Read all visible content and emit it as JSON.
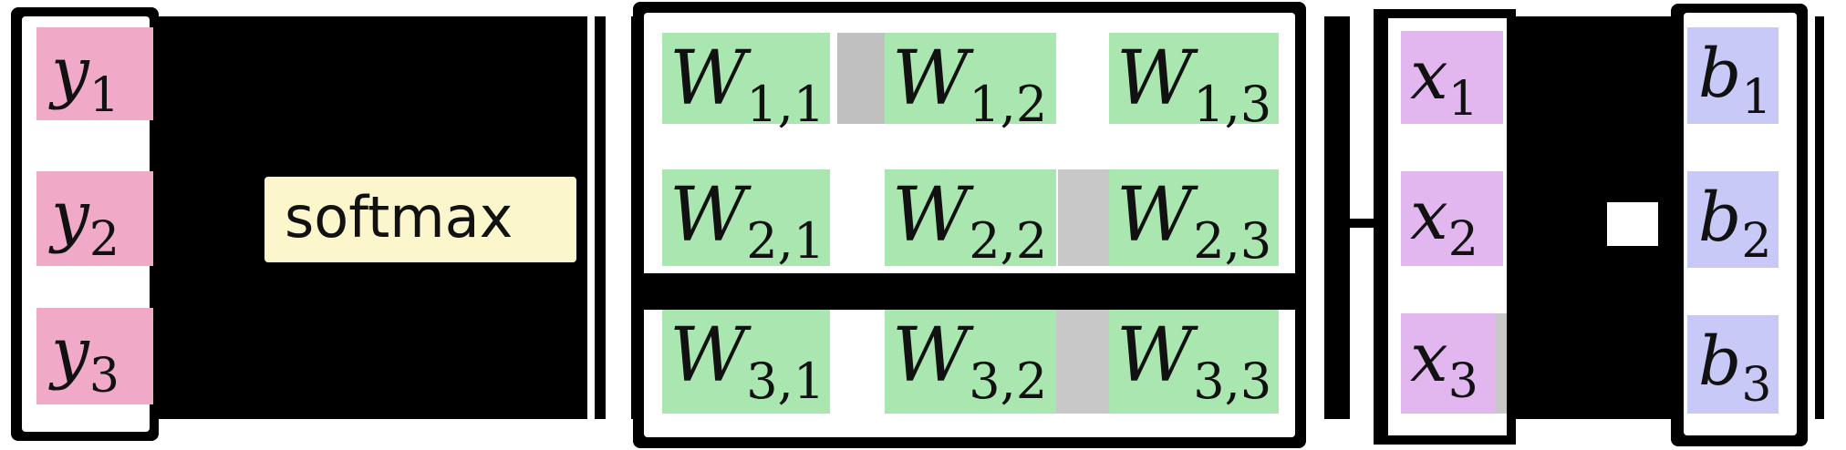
{
  "colors": {
    "y": "#F0AAC8",
    "W": "#AAE6AF",
    "x": "#E2B6EE",
    "b": "#C9C9F7",
    "softmax": "#FBF6CC",
    "black": "#000000",
    "white": "#FFFFFF",
    "gray": "#BFBFBF"
  },
  "y": [
    {
      "base": "y",
      "sub": "1"
    },
    {
      "base": "y",
      "sub": "2"
    },
    {
      "base": "y",
      "sub": "3"
    }
  ],
  "softmax": {
    "label": "softmax"
  },
  "W": [
    [
      {
        "base": "W",
        "sub": "1,1"
      },
      {
        "base": "W",
        "sub": "1,2"
      },
      {
        "base": "W",
        "sub": "1,3"
      }
    ],
    [
      {
        "base": "W",
        "sub": "2,1"
      },
      {
        "base": "W",
        "sub": "2,2"
      },
      {
        "base": "W",
        "sub": "2,3"
      }
    ],
    [
      {
        "base": "W",
        "sub": "3,1"
      },
      {
        "base": "W",
        "sub": "3,2"
      },
      {
        "base": "W",
        "sub": "3,3"
      }
    ]
  ],
  "x": [
    {
      "base": "x",
      "sub": "1"
    },
    {
      "base": "x",
      "sub": "2"
    },
    {
      "base": "x",
      "sub": "3"
    }
  ],
  "b": [
    {
      "base": "b",
      "sub": "1"
    },
    {
      "base": "b",
      "sub": "2"
    },
    {
      "base": "b",
      "sub": "3"
    }
  ]
}
